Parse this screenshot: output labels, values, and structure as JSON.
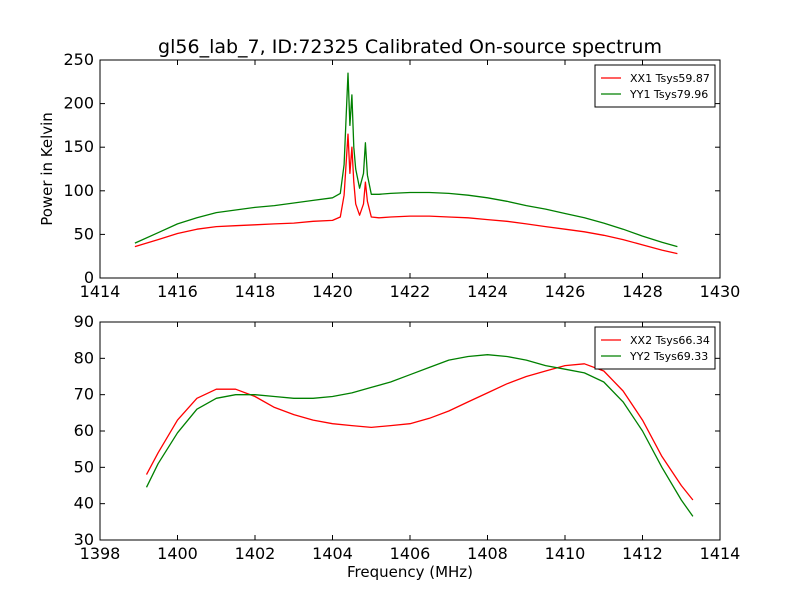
{
  "figure_title": "gl56_lab_7, ID:72325 Calibrated On-source spectrum",
  "chart_data": [
    {
      "type": "line",
      "title": "gl56_lab_7, ID:72325 Calibrated On-source spectrum",
      "xlabel": "",
      "ylabel": "Power in Kelvin",
      "xlim": [
        1414,
        1430
      ],
      "ylim": [
        0,
        250
      ],
      "xticks": [
        1414,
        1416,
        1418,
        1420,
        1422,
        1424,
        1426,
        1428,
        1430
      ],
      "yticks": [
        0,
        50,
        100,
        150,
        200,
        250
      ],
      "grid": false,
      "legend": "top-right",
      "series": [
        {
          "name": "XX1 Tsys59.87",
          "color": "#ff0000",
          "x": [
            1414.9,
            1415.5,
            1416.0,
            1416.5,
            1417.0,
            1417.5,
            1418.0,
            1418.5,
            1419.0,
            1419.5,
            1420.0,
            1420.2,
            1420.3,
            1420.4,
            1420.45,
            1420.5,
            1420.55,
            1420.6,
            1420.7,
            1420.8,
            1420.85,
            1420.9,
            1421.0,
            1421.2,
            1421.5,
            1422.0,
            1422.5,
            1423.0,
            1423.5,
            1424.0,
            1424.5,
            1425.0,
            1425.5,
            1426.0,
            1426.5,
            1427.0,
            1427.5,
            1428.0,
            1428.5,
            1428.9
          ],
          "y": [
            36,
            44,
            51,
            56,
            59,
            60,
            61,
            62,
            63,
            65,
            66,
            70,
            95,
            165,
            120,
            150,
            110,
            85,
            72,
            85,
            110,
            88,
            70,
            69,
            70,
            71,
            71,
            70,
            69,
            67,
            65,
            62,
            59,
            56,
            53,
            49,
            44,
            38,
            32,
            28
          ]
        },
        {
          "name": "YY1 Tsys79.96",
          "color": "#008000",
          "x": [
            1414.9,
            1415.5,
            1416.0,
            1416.5,
            1417.0,
            1417.5,
            1418.0,
            1418.5,
            1419.0,
            1419.5,
            1420.0,
            1420.2,
            1420.3,
            1420.4,
            1420.45,
            1420.5,
            1420.55,
            1420.6,
            1420.7,
            1420.8,
            1420.85,
            1420.9,
            1421.0,
            1421.2,
            1421.5,
            1422.0,
            1422.5,
            1423.0,
            1423.5,
            1424.0,
            1424.5,
            1425.0,
            1425.5,
            1426.0,
            1426.5,
            1427.0,
            1427.5,
            1428.0,
            1428.5,
            1428.9
          ],
          "y": [
            40,
            52,
            62,
            69,
            75,
            78,
            81,
            83,
            86,
            89,
            92,
            97,
            130,
            235,
            175,
            210,
            150,
            125,
            103,
            120,
            155,
            118,
            96,
            96,
            97,
            98,
            98,
            97,
            95,
            92,
            88,
            83,
            79,
            74,
            69,
            63,
            56,
            48,
            41,
            36
          ]
        }
      ]
    },
    {
      "type": "line",
      "title": "",
      "xlabel": "Frequency (MHz)",
      "ylabel": "",
      "xlim": [
        1398,
        1414
      ],
      "ylim": [
        30,
        90
      ],
      "xticks": [
        1398,
        1400,
        1402,
        1404,
        1406,
        1408,
        1410,
        1412,
        1414
      ],
      "yticks": [
        30,
        40,
        50,
        60,
        70,
        80,
        90
      ],
      "grid": false,
      "legend": "top-right",
      "series": [
        {
          "name": "XX2 Tsys66.34",
          "color": "#ff0000",
          "x": [
            1399.2,
            1399.5,
            1400.0,
            1400.5,
            1401.0,
            1401.5,
            1402.0,
            1402.5,
            1403.0,
            1403.5,
            1404.0,
            1404.5,
            1405.0,
            1405.5,
            1406.0,
            1406.5,
            1407.0,
            1407.5,
            1408.0,
            1408.5,
            1409.0,
            1409.5,
            1410.0,
            1410.5,
            1411.0,
            1411.5,
            1412.0,
            1412.5,
            1413.0,
            1413.3
          ],
          "y": [
            48,
            54,
            63,
            69,
            71.5,
            71.5,
            69.5,
            66.5,
            64.5,
            63,
            62,
            61.5,
            61,
            61.5,
            62,
            63.5,
            65.5,
            68,
            70.5,
            73,
            75,
            76.5,
            78,
            78.5,
            76.5,
            71,
            63,
            53,
            45,
            41
          ]
        },
        {
          "name": "YY2 Tsys69.33",
          "color": "#008000",
          "x": [
            1399.2,
            1399.5,
            1400.0,
            1400.5,
            1401.0,
            1401.5,
            1402.0,
            1402.5,
            1403.0,
            1403.5,
            1404.0,
            1404.5,
            1405.0,
            1405.5,
            1406.0,
            1406.5,
            1407.0,
            1407.5,
            1408.0,
            1408.5,
            1409.0,
            1409.5,
            1410.0,
            1410.5,
            1411.0,
            1411.5,
            1412.0,
            1412.5,
            1413.0,
            1413.3
          ],
          "y": [
            44.5,
            51,
            59.5,
            66,
            69,
            70,
            70,
            69.5,
            69,
            69,
            69.5,
            70.5,
            72,
            73.5,
            75.5,
            77.5,
            79.5,
            80.5,
            81,
            80.5,
            79.5,
            78,
            77,
            76,
            73.5,
            68,
            60,
            50,
            41,
            36.5
          ]
        }
      ]
    }
  ]
}
